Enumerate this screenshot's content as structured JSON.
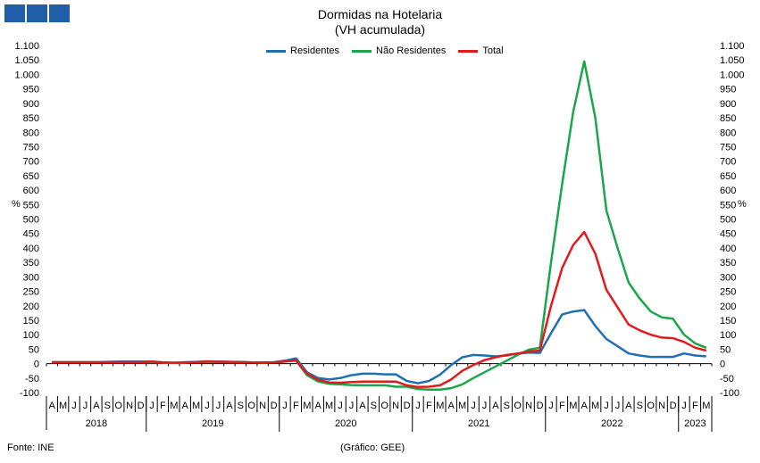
{
  "title": "Dormidas na Hotelaria",
  "subtitle": "(VH acumulada)",
  "source": "Fonte: INE",
  "credit": "(Gráfico: GEE)",
  "logo_color": "#1f5fa8",
  "chart_data": {
    "type": "line",
    "ylim": [
      -100,
      1100
    ],
    "yticks": [
      -100,
      -50,
      0,
      50,
      100,
      150,
      200,
      250,
      300,
      350,
      400,
      450,
      500,
      550,
      600,
      650,
      700,
      750,
      800,
      850,
      900,
      950,
      1000,
      1050,
      1100
    ],
    "ytick_labels": [
      "-100",
      "-50",
      "0",
      "50",
      "100",
      "150",
      "200",
      "250",
      "300",
      "350",
      "400",
      "450",
      "500",
      "550",
      "600",
      "650",
      "700",
      "750",
      "800",
      "850",
      "900",
      "950",
      "1.000",
      "1.050",
      "1.100"
    ],
    "ylabel_left": "%",
    "ylabel_right": "%",
    "legend_position": "top-center",
    "grid": false,
    "months": [
      "A",
      "M",
      "J",
      "J",
      "A",
      "S",
      "O",
      "N",
      "D",
      "J",
      "F",
      "M",
      "A",
      "M",
      "J",
      "J",
      "A",
      "S",
      "O",
      "N",
      "D",
      "J",
      "F",
      "M",
      "A",
      "M",
      "J",
      "J",
      "A",
      "S",
      "O",
      "N",
      "D",
      "J",
      "F",
      "M",
      "A",
      "M",
      "J",
      "J",
      "A",
      "S",
      "O",
      "N",
      "D",
      "J",
      "F",
      "M",
      "A",
      "M",
      "J",
      "J",
      "A",
      "S",
      "O",
      "N",
      "D",
      "J",
      "F",
      "M"
    ],
    "years": [
      {
        "label": "2018",
        "start": 0,
        "count": 9
      },
      {
        "label": "2019",
        "start": 9,
        "count": 12
      },
      {
        "label": "2020",
        "start": 21,
        "count": 12
      },
      {
        "label": "2021",
        "start": 33,
        "count": 12
      },
      {
        "label": "2022",
        "start": 45,
        "count": 12
      },
      {
        "label": "2023",
        "start": 57,
        "count": 3
      }
    ],
    "series": [
      {
        "name": "Residentes",
        "color": "#1f6fb4",
        "values": [
          5,
          5,
          5,
          5,
          5,
          6,
          7,
          7,
          7,
          7,
          4,
          3,
          5,
          6,
          8,
          7,
          6,
          6,
          4,
          4,
          5,
          10,
          18,
          -30,
          -50,
          -55,
          -50,
          -40,
          -35,
          -35,
          -37,
          -37,
          -60,
          -68,
          -60,
          -38,
          -5,
          22,
          30,
          28,
          25,
          28,
          35,
          38,
          37,
          105,
          170,
          180,
          185,
          130,
          85,
          60,
          35,
          28,
          23,
          23,
          23,
          35,
          28,
          25
        ]
      },
      {
        "name": "Não Residentes",
        "color": "#1aa64a",
        "values": [
          5,
          5,
          5,
          5,
          4,
          4,
          4,
          4,
          4,
          5,
          3,
          2,
          3,
          5,
          6,
          6,
          5,
          5,
          4,
          3,
          4,
          7,
          10,
          -40,
          -62,
          -70,
          -72,
          -74,
          -75,
          -75,
          -75,
          -80,
          -80,
          -88,
          -90,
          -90,
          -85,
          -72,
          -50,
          -30,
          -10,
          10,
          30,
          48,
          55,
          350,
          620,
          870,
          1045,
          850,
          530,
          400,
          280,
          225,
          180,
          160,
          155,
          100,
          70,
          55
        ]
      },
      {
        "name": "Total",
        "color": "#e31a1c",
        "values": [
          5,
          5,
          5,
          5,
          5,
          5,
          5,
          5,
          5,
          7,
          4,
          3,
          4,
          5,
          7,
          6,
          6,
          5,
          4,
          4,
          4,
          7,
          12,
          -35,
          -56,
          -65,
          -66,
          -64,
          -62,
          -62,
          -62,
          -62,
          -75,
          -81,
          -80,
          -75,
          -55,
          -25,
          -5,
          12,
          22,
          30,
          35,
          42,
          45,
          200,
          330,
          410,
          455,
          380,
          255,
          195,
          135,
          115,
          100,
          90,
          88,
          75,
          55,
          45
        ]
      }
    ]
  }
}
